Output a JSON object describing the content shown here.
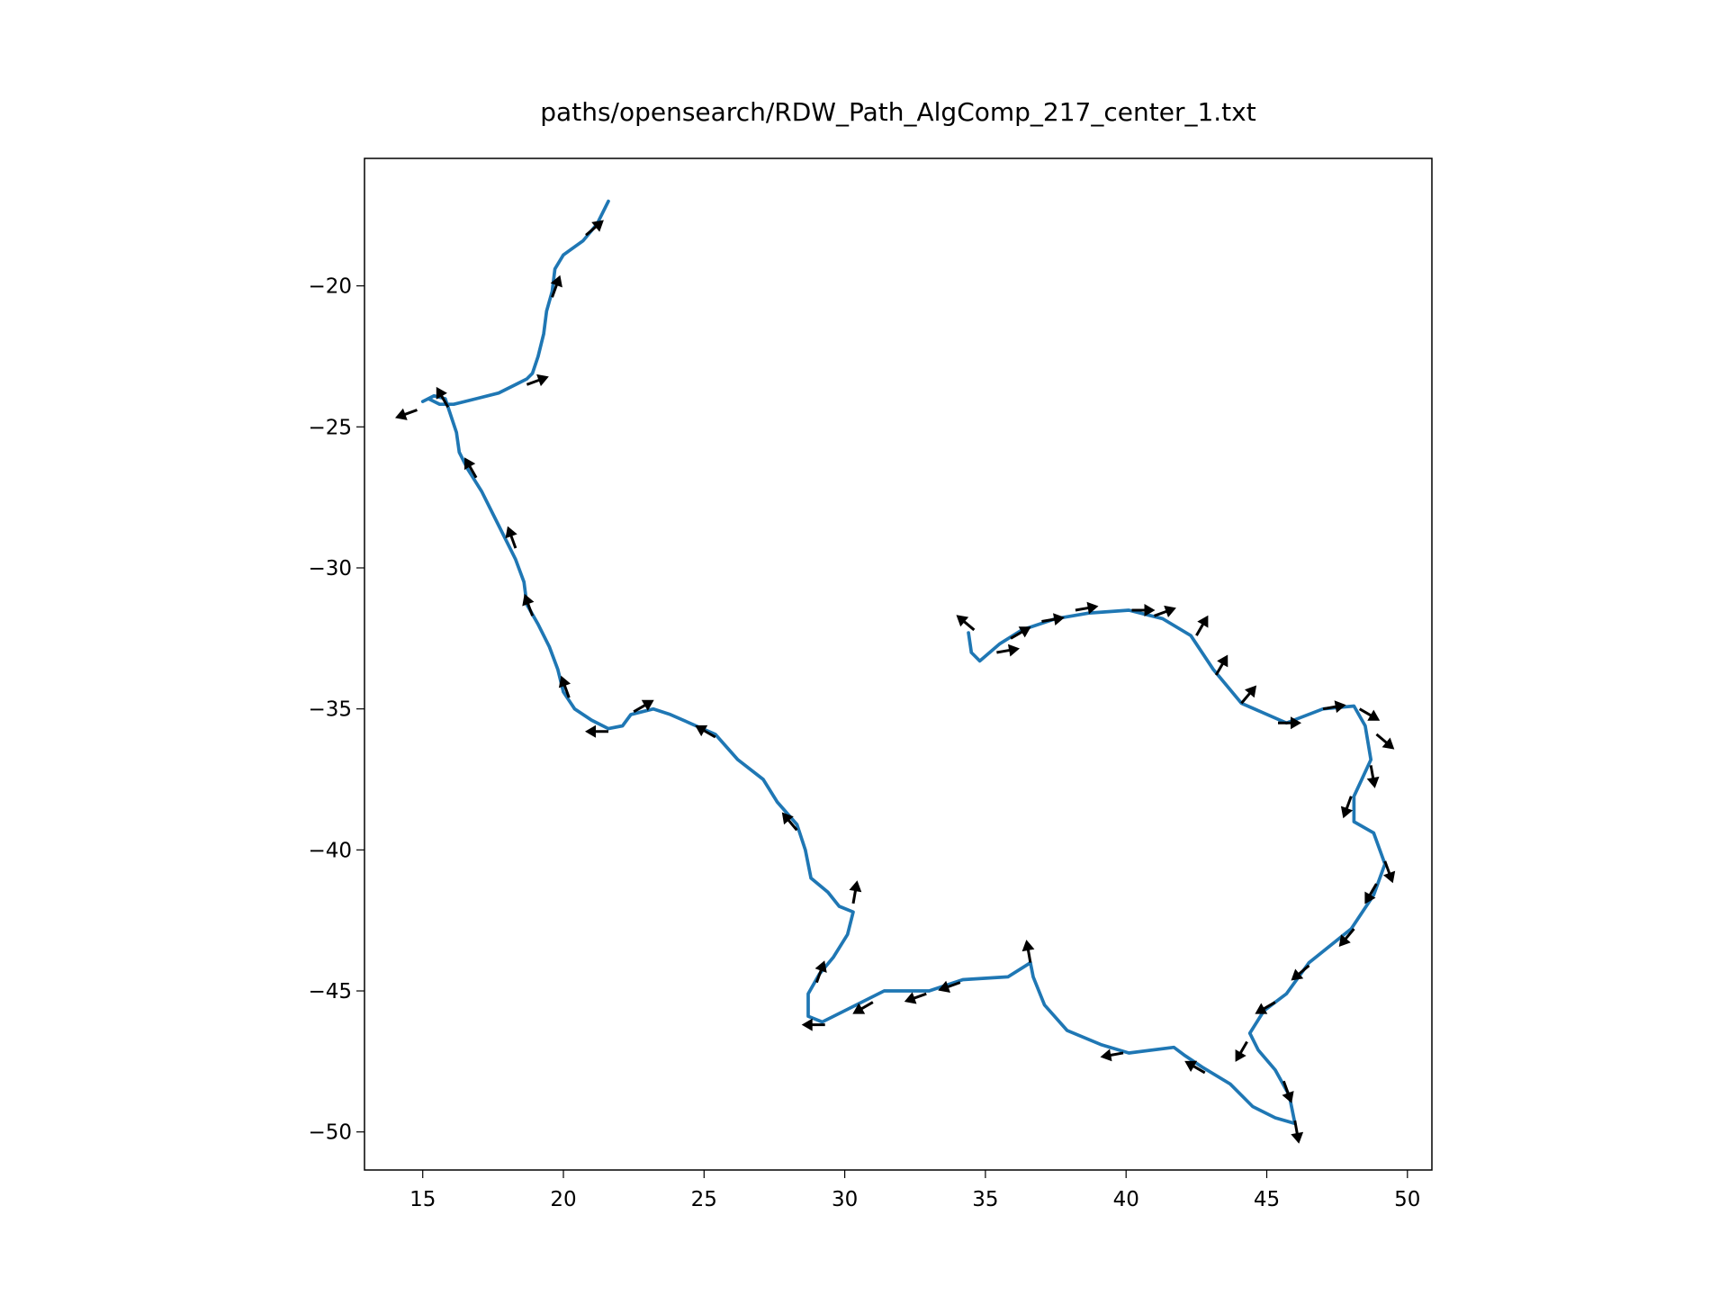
{
  "chart_data": {
    "type": "line",
    "title": "paths/opensearch/RDW_Path_AlgComp_217_center_1.txt",
    "series": [
      {
        "color": "#1f77b4",
        "x": [
          21.6,
          21.2,
          20.7,
          20.0,
          19.7,
          19.6,
          19.4,
          19.3,
          19.1,
          18.9,
          18.7,
          18.3,
          17.7,
          16.9,
          16.1,
          15.6,
          15.2,
          15.0,
          15.4,
          15.8,
          16.2,
          16.3,
          16.6,
          17.1,
          17.5,
          17.9,
          18.3,
          18.6,
          18.7,
          19.1,
          19.5,
          19.8,
          20.0,
          20.4,
          21.0,
          21.6,
          22.1,
          22.4,
          23.2,
          23.8,
          25.4,
          26.2,
          27.1,
          27.6,
          28.3,
          28.6,
          28.8,
          29.4,
          29.8,
          30.3,
          30.1,
          29.6,
          29.1,
          28.7,
          28.7,
          29.2,
          30.0,
          31.4,
          33.0,
          34.2,
          35.8,
          36.6,
          36.7,
          37.1,
          37.9,
          39.1,
          40.1,
          41.7,
          42.1,
          42.7,
          43.7,
          44.5,
          45.3,
          46.0,
          45.8,
          45.3,
          44.7,
          44.4,
          44.9,
          45.7,
          46.5,
          48.0,
          48.8,
          49.2,
          48.8,
          48.1,
          48.1,
          48.7,
          48.5,
          48.1,
          47.0,
          45.7,
          44.1,
          43.1,
          42.3,
          41.3,
          40.1,
          38.7,
          37.5,
          36.3,
          35.5,
          34.8,
          34.5,
          34.4
        ],
        "y": [
          -17.0,
          -17.8,
          -18.4,
          -18.9,
          -19.4,
          -20.2,
          -20.9,
          -21.7,
          -22.5,
          -23.1,
          -23.3,
          -23.5,
          -23.8,
          -24.0,
          -24.2,
          -24.2,
          -24.0,
          -24.1,
          -23.9,
          -24.0,
          -25.2,
          -25.9,
          -26.5,
          -27.3,
          -28.1,
          -28.9,
          -29.7,
          -30.5,
          -31.3,
          -32.0,
          -32.8,
          -33.6,
          -34.4,
          -35.0,
          -35.4,
          -35.7,
          -35.6,
          -35.2,
          -35.0,
          -35.2,
          -35.9,
          -36.8,
          -37.5,
          -38.3,
          -39.1,
          -40.0,
          -41.0,
          -41.5,
          -42.0,
          -42.2,
          -43.0,
          -43.8,
          -44.4,
          -45.1,
          -45.9,
          -46.1,
          -45.7,
          -45.0,
          -45.0,
          -44.6,
          -44.5,
          -44.0,
          -44.5,
          -45.5,
          -46.4,
          -46.9,
          -47.2,
          -47.0,
          -47.3,
          -47.7,
          -48.3,
          -49.1,
          -49.5,
          -49.7,
          -48.7,
          -47.8,
          -47.1,
          -46.5,
          -45.7,
          -45.1,
          -44.0,
          -42.8,
          -41.6,
          -40.5,
          -39.4,
          -39.0,
          -38.1,
          -36.8,
          -35.6,
          -34.9,
          -35.0,
          -35.5,
          -34.8,
          -33.6,
          -32.4,
          -31.8,
          -31.5,
          -31.6,
          -31.8,
          -32.2,
          -32.7,
          -33.3,
          -33.0,
          -32.3
        ]
      }
    ],
    "arrows": {
      "color": "#000000",
      "x": [
        20.8,
        19.6,
        18.7,
        14.8,
        15.9,
        16.9,
        18.3,
        18.9,
        20.2,
        21.6,
        22.5,
        25.4,
        28.3,
        30.3,
        29.0,
        29.3,
        31.0,
        32.9,
        34.1,
        36.6,
        39.9,
        42.8,
        45.6,
        46.0,
        44.3,
        45.3,
        46.5,
        48.1,
        48.9,
        49.2,
        48.0,
        48.7,
        48.9,
        48.3,
        47.0,
        45.4,
        44.1,
        43.2,
        42.5,
        41.0,
        40.2,
        38.2,
        37.0,
        35.9,
        35.4,
        34.6
      ],
      "y": [
        -18.2,
        -20.4,
        -23.5,
        -24.4,
        -24.3,
        -26.8,
        -29.3,
        -31.7,
        -34.6,
        -35.8,
        -35.1,
        -36.0,
        -39.3,
        -41.9,
        -44.7,
        -46.2,
        -45.4,
        -45.1,
        -44.7,
        -44.0,
        -47.2,
        -47.9,
        -48.2,
        -49.6,
        -46.8,
        -45.4,
        -44.1,
        -42.8,
        -41.2,
        -40.4,
        -38.1,
        -37.0,
        -35.9,
        -35.0,
        -35.0,
        -35.5,
        -34.8,
        -33.8,
        -32.4,
        -31.7,
        -31.5,
        -31.5,
        -31.9,
        -32.5,
        -33.0,
        -32.2
      ],
      "angle": [
        40,
        70,
        20,
        200,
        120,
        120,
        110,
        110,
        110,
        180,
        30,
        150,
        130,
        80,
        70,
        180,
        210,
        200,
        200,
        100,
        190,
        150,
        290,
        280,
        240,
        210,
        220,
        230,
        240,
        290,
        250,
        280,
        320,
        330,
        10,
        0,
        50,
        60,
        60,
        20,
        0,
        10,
        10,
        30,
        10,
        140
      ]
    },
    "xlim": [
      12.93,
      50.87
    ],
    "ylim": [
      -51.35,
      -15.48
    ],
    "xticks": [
      15,
      20,
      25,
      30,
      35,
      40,
      45,
      50
    ],
    "yticks": [
      {
        "value": -20,
        "label": "−20"
      },
      {
        "value": -25,
        "label": "−25"
      },
      {
        "value": -30,
        "label": "−30"
      },
      {
        "value": -35,
        "label": "−35"
      },
      {
        "value": -40,
        "label": "−40"
      },
      {
        "value": -45,
        "label": "−45"
      },
      {
        "value": -50,
        "label": "−50"
      }
    ]
  }
}
